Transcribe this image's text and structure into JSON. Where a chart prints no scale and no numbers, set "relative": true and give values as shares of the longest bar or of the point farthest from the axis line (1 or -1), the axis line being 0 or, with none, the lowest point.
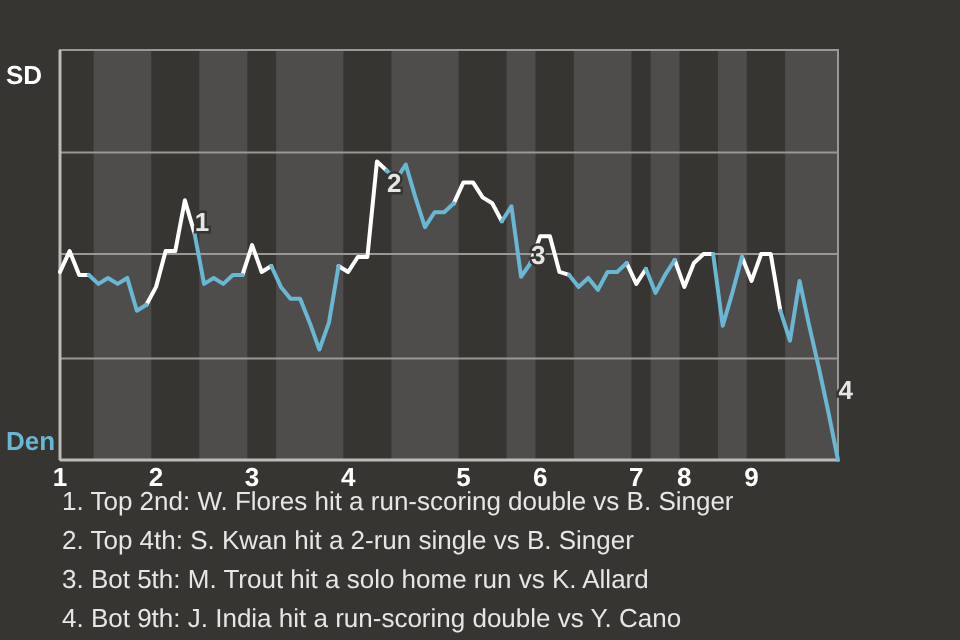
{
  "chart_data": {
    "type": "line",
    "relative": true,
    "categories": [
      "1",
      null,
      null,
      null,
      null,
      null,
      null,
      null,
      null,
      null,
      "2",
      null,
      null,
      null,
      null,
      null,
      null,
      null,
      null,
      null,
      "3",
      null,
      null,
      null,
      null,
      null,
      null,
      null,
      null,
      null,
      "4",
      null,
      null,
      null,
      null,
      null,
      null,
      null,
      null,
      null,
      null,
      null,
      "5",
      null,
      null,
      null,
      null,
      null,
      null,
      null,
      "6",
      null,
      null,
      null,
      null,
      null,
      null,
      null,
      null,
      null,
      "7",
      null,
      null,
      null,
      null,
      "8",
      null,
      null,
      null,
      null,
      null,
      null,
      "9",
      null,
      null,
      null,
      null,
      null,
      null,
      null,
      null,
      null
    ],
    "series": [
      {
        "name": "SD",
        "color": "#ffffff",
        "values": [
          0.63,
          0.7,
          0.62,
          0.62,
          null,
          null,
          null,
          null,
          null,
          0.52,
          0.58,
          0.7,
          0.7,
          0.87,
          0.76,
          null,
          null,
          null,
          null,
          0.62,
          0.72,
          0.63,
          0.65,
          null,
          null,
          null,
          null,
          null,
          null,
          0.65,
          0.63,
          0.68,
          0.68,
          1,
          0.97,
          null,
          null,
          null,
          null,
          null,
          null,
          0.86,
          0.93,
          0.93,
          0.88,
          0.86,
          0.8,
          null,
          null,
          0.66,
          0.75,
          0.75,
          0.63,
          0.62,
          null,
          null,
          null,
          null,
          null,
          0.66,
          0.59,
          0.64,
          null,
          null,
          0.67,
          0.58,
          0.66,
          0.69,
          0.69,
          null,
          null,
          0.68,
          0.6,
          0.69,
          0.69,
          0.5,
          null,
          null,
          null,
          null,
          null,
          null
        ]
      },
      {
        "name": "Den",
        "color": "#6ab7d3",
        "values": [
          null,
          null,
          null,
          0.62,
          0.59,
          0.61,
          0.59,
          0.61,
          0.5,
          0.52,
          null,
          null,
          null,
          null,
          0.76,
          0.59,
          0.61,
          0.59,
          0.62,
          0.62,
          null,
          null,
          0.65,
          0.58,
          0.54,
          0.54,
          0.46,
          0.37,
          0.46,
          0.65,
          null,
          null,
          null,
          null,
          0.97,
          0.94,
          0.99,
          0.88,
          0.78,
          0.83,
          0.83,
          0.86,
          null,
          null,
          null,
          null,
          0.8,
          0.85,
          0.614,
          0.66,
          null,
          null,
          null,
          0.62,
          0.58,
          0.61,
          0.57,
          0.63,
          0.63,
          0.66,
          null,
          0.64,
          0.56,
          0.62,
          0.67,
          null,
          null,
          null,
          0.69,
          0.45,
          0.56,
          0.68,
          null,
          null,
          null,
          0.5,
          0.4,
          0.6,
          0.45,
          0.31,
          0.16,
          0
        ]
      }
    ],
    "legend": "left",
    "marker": "none",
    "line_style": "solid",
    "ref_lines": [
      {
        "axis": "y",
        "value": 0.34,
        "color": "#9a9894"
      },
      {
        "axis": "y",
        "value": 0.69,
        "color": "#9a9894"
      },
      {
        "axis": "y",
        "value": 1.03,
        "color": "#9a9894"
      }
    ],
    "annotations": [
      "1",
      "2",
      "3",
      "4",
      "1. Top 2nd: W. Flores hit a run-scoring double vs B. Singer",
      "2. Top 4th: S. Kwan hit a 2-run single vs B. Singer",
      "3. Bot 5th: M. Trout hit a solo home run vs K. Allard",
      "4. Bot 9th: J. India hit a run-scoring double vs Y. Cano"
    ]
  }
}
